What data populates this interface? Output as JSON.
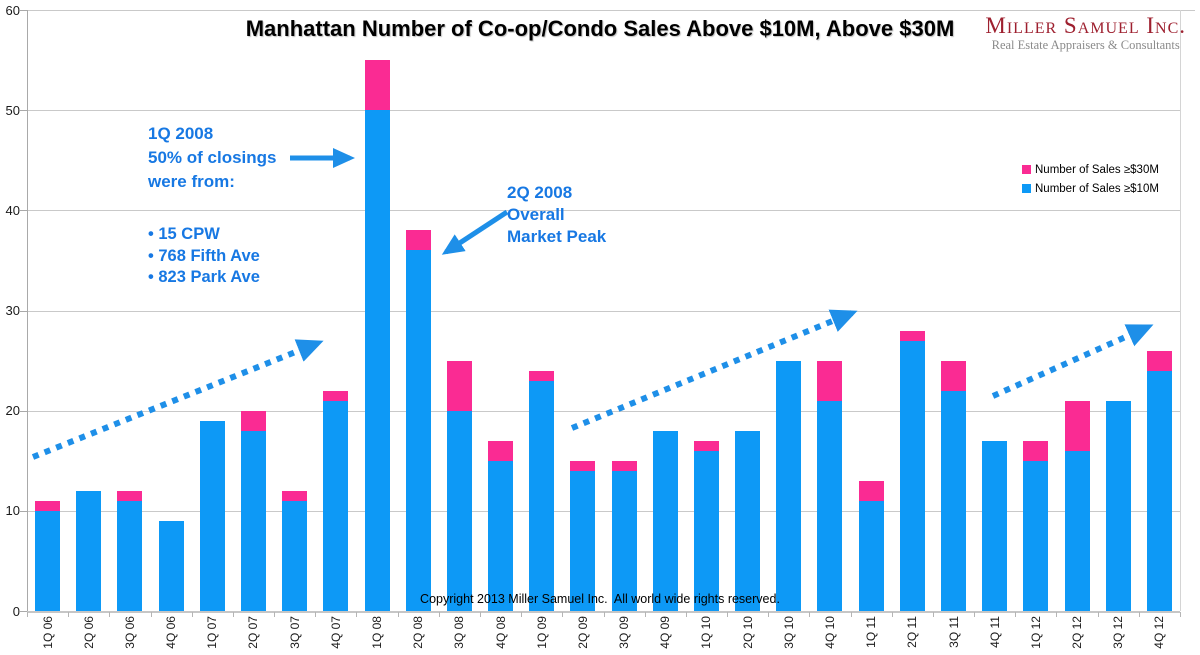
{
  "title": "Manhattan Number of Co-op/Condo Sales Above $10M, Above $30M",
  "logo": {
    "name": "Miller Samuel Inc.",
    "tagline": "Real Estate Appraisers & Consultants"
  },
  "annotations": {
    "closings": {
      "line1": "1Q 2008",
      "line2": "50% of closings",
      "line3": "were from:",
      "bullet1": "• 15 CPW",
      "bullet2": "• 768 Fifth Ave",
      "bullet3": "• 823 Park Ave"
    },
    "peak": {
      "line1": "2Q 2008",
      "line2": "Overall",
      "line3": "Market Peak"
    }
  },
  "copyright": "Copyright 2013 Miller Samuel Inc.  All world wide rights reserved.",
  "colors": {
    "bar_blue": "#0d99f6",
    "bar_pink": "#fa2b93",
    "annotation_blue": "#1778e3",
    "arrow_blue": "#1e8fe8",
    "grid_gray": "#c9c9c9",
    "logo_red": "#9e202f",
    "logo_gray": "#8b8b8b"
  },
  "chart_data": {
    "type": "bar",
    "stacked": true,
    "title": "Manhattan Number of Co-op/Condo Sales Above $10M, Above $30M",
    "xlabel": "",
    "ylabel": "",
    "ylim": [
      0,
      60
    ],
    "ytick_step": 10,
    "yticks": [
      "0",
      "10",
      "20",
      "30",
      "40",
      "50",
      "60"
    ],
    "grid": true,
    "legend_position": "right-upper",
    "categories": [
      "1Q 06",
      "2Q 06",
      "3Q 06",
      "4Q 06",
      "1Q 07",
      "2Q 07",
      "3Q 07",
      "4Q 07",
      "1Q 08",
      "2Q 08",
      "3Q 08",
      "4Q 08",
      "1Q 09",
      "2Q 09",
      "3Q 09",
      "4Q 09",
      "1Q 10",
      "2Q 10",
      "3Q 10",
      "4Q 10",
      "1Q 11",
      "2Q 11",
      "3Q 11",
      "4Q 11",
      "1Q 12",
      "2Q 12",
      "3Q 12",
      "4Q 12"
    ],
    "series": [
      {
        "name": "Number of Sales ≥$30M",
        "color": "#fa2b93",
        "stack_order": "top",
        "values": [
          1,
          0,
          1,
          0,
          0,
          2,
          1,
          1,
          5,
          2,
          5,
          2,
          1,
          1,
          1,
          0,
          1,
          0,
          0,
          4,
          2,
          1,
          3,
          0,
          2,
          5,
          0,
          2
        ]
      },
      {
        "name": "Number of Sales ≥$10M",
        "color": "#0d99f6",
        "stack_order": "bottom",
        "values": [
          10,
          12,
          11,
          9,
          19,
          18,
          11,
          21,
          50,
          36,
          20,
          15,
          23,
          14,
          14,
          18,
          16,
          18,
          25,
          21,
          11,
          27,
          22,
          17,
          15,
          16,
          21,
          24
        ]
      }
    ],
    "stacked_totals": [
      11,
      12,
      12,
      9,
      19,
      20,
      12,
      22,
      55,
      38,
      25,
      17,
      24,
      15,
      15,
      18,
      17,
      18,
      25,
      25,
      13,
      28,
      25,
      17,
      17,
      21,
      21,
      26
    ]
  }
}
